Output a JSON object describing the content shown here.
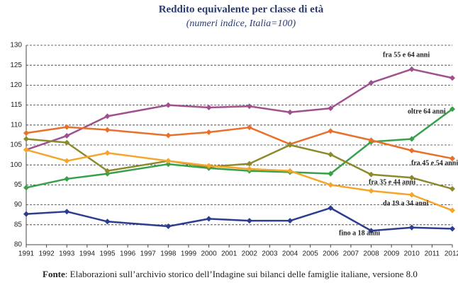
{
  "chart_data": {
    "type": "line",
    "title": "Reddito equivalente per classe di età",
    "subtitle": "(numeri indice, Italia=100)",
    "source_label": "Fonte",
    "source": ": Elaborazioni sull’archivio storico dell’Indagine sui bilanci delle famiglie italiane, versione 8.0",
    "x": [
      1991,
      1993,
      1995,
      1998,
      2000,
      2002,
      2004,
      2006,
      2008,
      2010,
      2012
    ],
    "xlim": [
      1991,
      2012
    ],
    "xticks": [
      1991,
      1992,
      1993,
      1994,
      1995,
      1996,
      1997,
      1998,
      1999,
      2000,
      2001,
      2002,
      2003,
      2004,
      2005,
      2006,
      2007,
      2008,
      2009,
      2010,
      2011,
      2012
    ],
    "ylim": [
      80,
      130
    ],
    "yticks": [
      80,
      85,
      90,
      95,
      100,
      105,
      110,
      115,
      120,
      125,
      130
    ],
    "grid": true,
    "series": [
      {
        "name": "fra 55 e 64 anni",
        "color": "#a0508f",
        "values": [
          103.8,
          107.3,
          112.2,
          115.0,
          114.4,
          114.7,
          113.2,
          114.2,
          120.6,
          124.0,
          121.8
        ]
      },
      {
        "name": "oltre 64 anni",
        "color": "#36a04a",
        "values": [
          94.3,
          96.5,
          97.8,
          100.2,
          99.2,
          98.5,
          98.2,
          97.8,
          105.8,
          106.5,
          114.0
        ]
      },
      {
        "name": "fra 45 e 54 anni",
        "color": "#e8702a",
        "values": [
          108.0,
          109.5,
          108.8,
          107.4,
          108.2,
          109.4,
          105.2,
          108.5,
          106.2,
          103.6,
          101.6
        ]
      },
      {
        "name": "fra 35 e 44 anni",
        "color": "#8c8a2c",
        "values": [
          106.5,
          105.6,
          98.5,
          101.0,
          99.5,
          100.3,
          105.0,
          102.6,
          97.6,
          96.8,
          94.0
        ]
      },
      {
        "name": "da 19 a 34 anni",
        "color": "#f5a62a",
        "values": [
          103.8,
          101.0,
          103.0,
          101.0,
          99.8,
          99.0,
          98.5,
          95.0,
          93.5,
          92.5,
          88.6
        ]
      },
      {
        "name": "fino a 18 anni",
        "color": "#2c3c8e",
        "values": [
          87.7,
          88.3,
          85.8,
          84.6,
          86.5,
          86.0,
          86.0,
          89.2,
          83.5,
          84.3,
          84.0
        ]
      }
    ]
  }
}
